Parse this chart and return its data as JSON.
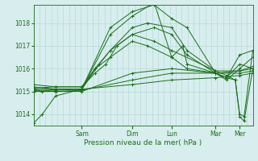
{
  "bg_color": "#d8eeee",
  "grid_color": "#b8d8d8",
  "line_color": "#1a6e1a",
  "marker": "+",
  "xlabel": "Pression niveau de la mer( hPa )",
  "ylim": [
    1013.5,
    1018.8
  ],
  "yticks": [
    1014,
    1015,
    1016,
    1017,
    1018
  ],
  "day_labels": [
    "Sam",
    "Dim",
    "Lun",
    "Mar",
    "Mer"
  ],
  "day_positions": [
    0.22,
    0.45,
    0.63,
    0.83,
    0.94
  ],
  "xlim": [
    0.0,
    1.0
  ],
  "series": [
    [
      0.0,
      1013.6,
      0.04,
      1014.0,
      0.1,
      1014.8,
      0.22,
      1015.1,
      0.35,
      1017.8,
      0.45,
      1018.5,
      0.55,
      1018.8,
      0.63,
      1018.2,
      0.7,
      1017.8,
      0.83,
      1015.8,
      0.88,
      1015.5,
      0.94,
      1016.0,
      1.0,
      1016.5
    ],
    [
      0.0,
      1015.1,
      0.04,
      1015.0,
      0.1,
      1015.1,
      0.22,
      1015.1,
      0.35,
      1017.5,
      0.45,
      1018.3,
      0.55,
      1018.9,
      0.63,
      1016.5,
      0.68,
      1017.0,
      0.7,
      1016.2,
      0.83,
      1015.8,
      0.88,
      1015.6,
      0.94,
      1016.2,
      1.0,
      1016.0
    ],
    [
      0.0,
      1015.2,
      0.1,
      1015.1,
      0.22,
      1015.1,
      0.3,
      1016.2,
      0.35,
      1016.8,
      0.45,
      1017.5,
      0.55,
      1017.2,
      0.63,
      1016.8,
      0.83,
      1015.9,
      0.94,
      1015.9,
      1.0,
      1016.1
    ],
    [
      0.0,
      1015.0,
      0.1,
      1015.0,
      0.22,
      1015.0,
      0.45,
      1015.8,
      0.63,
      1016.0,
      0.83,
      1015.8,
      0.94,
      1015.9,
      1.0,
      1016.0
    ],
    [
      0.0,
      1015.0,
      0.1,
      1015.0,
      0.22,
      1015.05,
      0.45,
      1015.5,
      0.63,
      1015.8,
      0.83,
      1015.8,
      0.94,
      1015.8,
      1.0,
      1015.9
    ],
    [
      0.0,
      1015.05,
      0.1,
      1015.05,
      0.22,
      1015.1,
      0.45,
      1015.3,
      0.63,
      1015.5,
      0.83,
      1015.6,
      0.94,
      1015.7,
      1.0,
      1015.8
    ],
    [
      0.0,
      1015.3,
      0.1,
      1015.2,
      0.22,
      1015.2,
      0.28,
      1016.0,
      0.35,
      1016.5,
      0.45,
      1017.2,
      0.52,
      1017.0,
      0.63,
      1016.5,
      0.7,
      1016.0,
      0.83,
      1015.8,
      0.88,
      1015.6,
      0.94,
      1016.6,
      1.0,
      1016.8
    ],
    [
      0.0,
      1015.1,
      0.1,
      1015.1,
      0.22,
      1015.1,
      0.28,
      1016.0,
      0.35,
      1016.8,
      0.45,
      1017.8,
      0.52,
      1018.0,
      0.63,
      1017.8,
      0.7,
      1016.8,
      0.83,
      1015.9,
      0.88,
      1015.7,
      0.92,
      1015.5,
      0.94,
      1013.9,
      0.96,
      1013.7,
      1.0,
      1016.0
    ],
    [
      0.0,
      1015.15,
      0.1,
      1015.2,
      0.22,
      1015.2,
      0.28,
      1015.8,
      0.33,
      1016.2,
      0.38,
      1017.0,
      0.45,
      1017.5,
      0.55,
      1017.8,
      0.63,
      1017.5,
      0.7,
      1016.6,
      0.83,
      1015.8,
      0.88,
      1015.6,
      0.92,
      1015.5,
      0.94,
      1014.0,
      0.96,
      1013.9,
      1.0,
      1016.8
    ]
  ]
}
